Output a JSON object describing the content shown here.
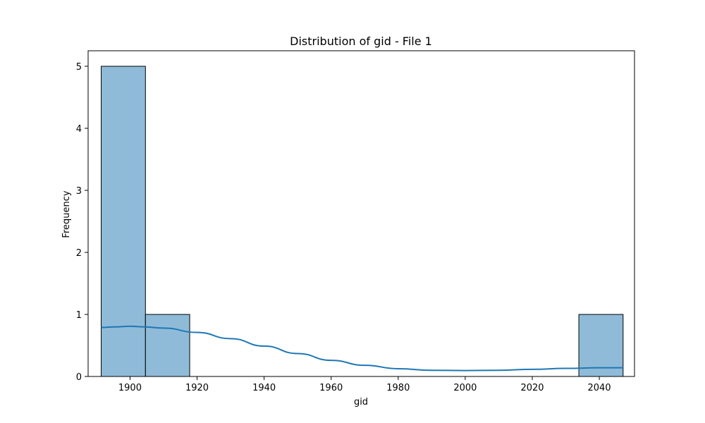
{
  "chart_data": {
    "type": "bar",
    "title": "Distribution of gid - File 1",
    "xlabel": "gid",
    "ylabel": "Frequency",
    "xlim": [
      1887.5,
      2050.5
    ],
    "ylim": [
      0,
      5.25
    ],
    "xticks": [
      1900,
      1920,
      1940,
      1960,
      1980,
      2000,
      2020,
      2040
    ],
    "yticks": [
      0,
      1,
      2,
      3,
      4,
      5
    ],
    "bins": [
      {
        "x0": 1891.4,
        "x1": 1904.6,
        "count": 5
      },
      {
        "x0": 1904.6,
        "x1": 1917.8,
        "count": 1
      },
      {
        "x0": 1917.8,
        "x1": 1931.0,
        "count": 0
      },
      {
        "x0": 1931.0,
        "x1": 1944.1,
        "count": 0
      },
      {
        "x0": 1944.1,
        "x1": 1957.3,
        "count": 0
      },
      {
        "x0": 1957.3,
        "x1": 1970.5,
        "count": 0
      },
      {
        "x0": 1970.5,
        "x1": 1983.7,
        "count": 0
      },
      {
        "x0": 1983.7,
        "x1": 1996.9,
        "count": 0
      },
      {
        "x0": 1996.9,
        "x1": 2010.1,
        "count": 0
      },
      {
        "x0": 2010.1,
        "x1": 2023.3,
        "count": 0
      },
      {
        "x0": 2023.3,
        "x1": 2033.9,
        "count": 0
      },
      {
        "x0": 2033.9,
        "x1": 2047.1,
        "count": 1
      }
    ],
    "kde": {
      "x": [
        1891.4,
        1896,
        1900,
        1904,
        1910,
        1920,
        1930,
        1940,
        1950,
        1960,
        1970,
        1980,
        1990,
        2000,
        2010,
        2020,
        2030,
        2040,
        2047.1
      ],
      "y": [
        0.79,
        0.8,
        0.81,
        0.8,
        0.78,
        0.71,
        0.61,
        0.49,
        0.37,
        0.26,
        0.18,
        0.125,
        0.1,
        0.095,
        0.1,
        0.115,
        0.13,
        0.14,
        0.14
      ]
    },
    "colors": {
      "bar_fill": "#8fbbd9",
      "bar_edge": "#000000",
      "kde_line": "#1f77b4"
    }
  }
}
